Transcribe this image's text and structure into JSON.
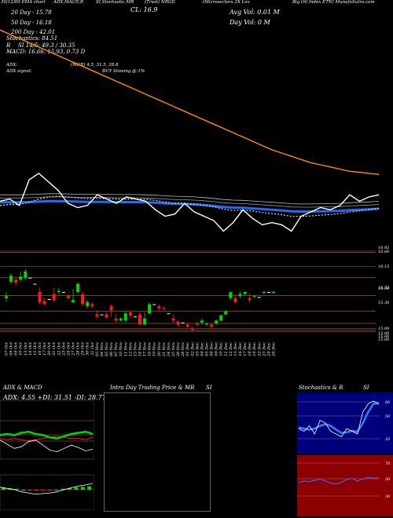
{
  "header": {
    "line1": [
      "30/12/09  EMA chart",
      "ADX,MACD,R",
      "SI,Stochastic,MR",
      "(Trust) NRGD",
      "(Microsectors  3X Lev",
      "Big Oil Index ETN) MunafaSutra.com"
    ],
    "cl_label": "CL: 16.9",
    "avg_vol": "Avg Vol: 0.01 M",
    "day_vol": "Day Vol: 0   M",
    "ema20": "20 Day - 15.78",
    "ema50": "50 Day - 16.18",
    "ema200": "200 Day - 42.01",
    "stoch": "Stochastics: 84.51",
    "rsi": "SI 14/5: 49.3 / 30.35",
    "rsi_prefix": "R",
    "macd": "MACD: 16.66, 15.93, 0.73 D",
    "adx": "ADX:",
    "adx_vals": "(MGR) 4.5, 31.5, 28.8",
    "adx_signal": "ADX  signal:",
    "signal_text": "BUY Slowing @ 1%"
  },
  "colors": {
    "bull": "#00d800",
    "bear": "#ff1a1a",
    "ema_long": "#ff8c00",
    "ema_blue": "#1e6bff",
    "price_line": "#ffffff",
    "grid": "#c06a3a",
    "rsi_panel": "#8b0000",
    "stoch_bg": "#00007a"
  },
  "chart_data": [
    {
      "type": "line",
      "title": "EMA chart",
      "series": [
        {
          "name": "Price",
          "values": [
            16.6,
            16.7,
            16.4,
            17.6,
            17.9,
            17.5,
            17.1,
            16.5,
            16.3,
            16.4,
            16.9,
            16.7,
            16.5,
            16.8,
            16.7,
            16.6,
            16.2,
            15.9,
            16.0,
            16.5,
            16.1,
            15.9,
            15.7,
            15.2,
            15.6,
            16.2,
            15.8,
            15.5,
            15.6,
            15.5,
            15.2,
            15.9,
            16.1,
            16.3,
            16.2,
            16.4,
            16.9,
            16.6,
            16.8,
            16.9
          ]
        },
        {
          "name": "20 Day",
          "values": [
            16.4,
            16.45,
            16.45,
            16.55,
            16.7,
            16.8,
            16.83,
            16.8,
            16.75,
            16.72,
            16.73,
            16.72,
            16.7,
            16.7,
            16.7,
            16.69,
            16.64,
            16.56,
            16.5,
            16.5,
            16.46,
            16.41,
            16.34,
            16.23,
            16.17,
            16.18,
            16.14,
            16.07,
            16.02,
            15.97,
            15.89,
            15.89,
            15.91,
            15.95,
            15.98,
            16.02,
            16.1,
            16.15,
            16.21,
            16.27
          ]
        },
        {
          "name": "50 Day",
          "values": [
            16.55,
            16.55,
            16.55,
            16.56,
            16.58,
            16.6,
            16.6,
            16.59,
            16.58,
            16.57,
            16.57,
            16.57,
            16.56,
            16.56,
            16.56,
            16.55,
            16.53,
            16.5,
            16.48,
            16.47,
            16.45,
            16.42,
            16.38,
            16.33,
            16.3,
            16.29,
            16.26,
            16.23,
            16.2,
            16.17,
            16.13,
            16.12,
            16.12,
            16.13,
            16.14,
            16.15,
            16.18,
            16.2,
            16.22,
            16.25
          ]
        },
        {
          "name": "200 Day",
          "values": [
            24.6,
            24.4,
            24.2,
            24.0,
            23.8,
            23.6,
            23.4,
            23.2,
            23.0,
            22.8,
            22.6,
            22.4,
            22.2,
            22.0,
            21.8,
            21.6,
            21.4,
            21.2,
            21.0,
            20.8,
            20.6,
            20.4,
            20.2,
            20.0,
            19.8,
            19.6,
            19.4,
            19.2,
            19.0,
            18.85,
            18.7,
            18.55,
            18.4,
            18.3,
            18.2,
            18.1,
            18.0,
            17.95,
            17.9,
            17.85
          ]
        }
      ],
      "ylim": [
        15.0,
        26.0
      ]
    },
    {
      "type": "bar",
      "title": "Candlesticks",
      "categories": [
        "07 Oct",
        "08 Oct",
        "09 Oct",
        "10 Oct",
        "13 Oct",
        "14 Oct",
        "15 Oct",
        "16 Oct",
        "17 Oct",
        "20 Oct",
        "21 Oct",
        "22 Oct",
        "23 Oct",
        "24 Oct",
        "27 Oct",
        "28 Oct",
        "29 Oct",
        "30 Oct",
        "31 Oct",
        "03 Nov",
        "04 Nov",
        "05 Nov",
        "06 Nov",
        "07 Nov",
        "10 Nov",
        "11 Nov",
        "12 Nov",
        "13 Nov",
        "14 Nov",
        "17 Nov",
        "18 Nov",
        "19 Nov",
        "20 Nov",
        "21 Nov",
        "24 Nov",
        "25 Nov",
        "26 Nov",
        "28 Nov",
        "01 Dec",
        "02 Dec",
        "03 Dec",
        "04 Dec",
        "05 Dec",
        "08 Dec",
        "09 Dec",
        "10 Dec",
        "11 Dec",
        "12 Dec",
        "15 Dec",
        "16 Dec",
        "17 Dec",
        "18 Dec",
        "19 Dec",
        "22 Dec",
        "23 Dec",
        "24 Dec",
        "26 Dec"
      ],
      "candles": [
        {
          "o": 16.6,
          "c": 16.7,
          "h": 16.9,
          "l": 16.4
        },
        {
          "o": 17.4,
          "c": 17.7,
          "h": 17.8,
          "l": 17.3
        },
        {
          "o": 17.5,
          "c": 17.35,
          "h": 17.6,
          "l": 17.2
        },
        {
          "o": 17.5,
          "c": 17.65,
          "h": 17.9,
          "l": 17.4
        },
        {
          "o": 17.6,
          "c": 17.9,
          "h": 18.0,
          "l": 17.5
        },
        {
          "o": 17.6,
          "c": 17.6,
          "h": 17.6,
          "l": 17.6
        },
        {
          "o": 17.3,
          "c": 17.3,
          "h": 17.3,
          "l": 17.3
        },
        {
          "o": 16.9,
          "c": 16.4,
          "h": 17.1,
          "l": 16.3
        },
        {
          "o": 16.45,
          "c": 16.3,
          "h": 16.6,
          "l": 16.25
        },
        {
          "o": 16.55,
          "c": 16.55,
          "h": 16.55,
          "l": 16.55
        },
        {
          "o": 16.8,
          "c": 16.5,
          "h": 17.1,
          "l": 16.4
        },
        {
          "o": 16.9,
          "c": 16.95,
          "h": 17.1,
          "l": 16.8
        },
        {
          "o": 16.9,
          "c": 16.9,
          "h": 16.9,
          "l": 16.9
        },
        {
          "o": 16.7,
          "c": 16.6,
          "h": 16.8,
          "l": 16.55
        },
        {
          "o": 16.4,
          "c": 16.5,
          "h": 17.05,
          "l": 16.35
        },
        {
          "o": 16.9,
          "c": 17.3,
          "h": 17.35,
          "l": 16.8
        },
        {
          "o": 16.8,
          "c": 16.3,
          "h": 16.9,
          "l": 16.2
        },
        {
          "o": 16.2,
          "c": 16.4,
          "h": 16.5,
          "l": 16.1
        },
        {
          "o": 16.3,
          "c": 16.2,
          "h": 16.4,
          "l": 16.1
        },
        {
          "o": 15.8,
          "c": 15.7,
          "h": 16.0,
          "l": 15.6
        },
        {
          "o": 15.8,
          "c": 15.8,
          "h": 15.8,
          "l": 15.8
        },
        {
          "o": 15.8,
          "c": 15.65,
          "h": 15.9,
          "l": 15.6
        },
        {
          "o": 16.2,
          "c": 16.0,
          "h": 16.3,
          "l": 15.7
        },
        {
          "o": 15.6,
          "c": 15.5,
          "h": 15.8,
          "l": 15.4
        },
        {
          "o": 15.5,
          "c": 15.6,
          "h": 15.65,
          "l": 15.45
        },
        {
          "o": 15.5,
          "c": 15.85,
          "h": 15.95,
          "l": 15.4
        },
        {
          "o": 15.9,
          "c": 15.75,
          "h": 16.0,
          "l": 15.6
        },
        {
          "o": 15.7,
          "c": 15.7,
          "h": 15.7,
          "l": 15.7
        },
        {
          "o": 15.8,
          "c": 15.3,
          "h": 15.9,
          "l": 15.3
        },
        {
          "o": 15.3,
          "c": 15.6,
          "h": 15.9,
          "l": 15.3
        },
        {
          "o": 15.85,
          "c": 16.3,
          "h": 16.35,
          "l": 15.8
        },
        {
          "o": 16.3,
          "c": 16.3,
          "h": 16.3,
          "l": 16.3
        },
        {
          "o": 16.2,
          "c": 16.1,
          "h": 16.3,
          "l": 16.0
        },
        {
          "o": 16.1,
          "c": 16.05,
          "h": 16.2,
          "l": 16.0
        },
        {
          "o": 15.85,
          "c": 15.85,
          "h": 15.85,
          "l": 15.85
        },
        {
          "o": 15.6,
          "c": 15.5,
          "h": 15.8,
          "l": 15.4
        },
        {
          "o": 15.45,
          "c": 15.3,
          "h": 15.5,
          "l": 15.2
        },
        {
          "o": 15.4,
          "c": 15.4,
          "h": 15.4,
          "l": 15.4
        },
        {
          "o": 15.3,
          "c": 15.2,
          "h": 15.4,
          "l": 15.1
        },
        {
          "o": 15.1,
          "c": 15.05,
          "h": 15.2,
          "l": 14.95
        },
        {
          "o": 15.35,
          "c": 15.3,
          "h": 15.45,
          "l": 15.2
        },
        {
          "o": 15.4,
          "c": 15.5,
          "h": 15.6,
          "l": 15.3
        },
        {
          "o": 15.3,
          "c": 15.35,
          "h": 15.4,
          "l": 15.25
        },
        {
          "o": 15.3,
          "c": 15.2,
          "h": 15.4,
          "l": 15.1
        },
        {
          "o": 15.35,
          "c": 15.5,
          "h": 15.55,
          "l": 15.3
        },
        {
          "o": 15.5,
          "c": 15.75,
          "h": 15.8,
          "l": 15.45
        },
        {
          "o": 15.8,
          "c": 15.95,
          "h": 16.0,
          "l": 15.75
        },
        {
          "o": 16.6,
          "c": 16.9,
          "h": 16.9,
          "l": 16.5
        },
        {
          "o": 16.6,
          "c": 16.4,
          "h": 16.7,
          "l": 16.35
        },
        {
          "o": 16.7,
          "c": 16.8,
          "h": 16.9,
          "l": 16.6
        },
        {
          "o": 16.8,
          "c": 16.9,
          "h": 16.9,
          "l": 16.75
        },
        {
          "o": 16.6,
          "c": 16.5,
          "h": 16.8,
          "l": 16.4
        },
        {
          "o": 16.65,
          "c": 16.7,
          "h": 16.75,
          "l": 16.6
        },
        {
          "o": 16.65,
          "c": 16.65,
          "h": 16.65,
          "l": 16.65
        },
        {
          "o": 16.85,
          "c": 16.9,
          "h": 16.95,
          "l": 16.8
        },
        {
          "o": 16.9,
          "c": 16.9,
          "h": 16.9,
          "l": 16.9
        },
        {
          "o": 16.85,
          "c": 16.9,
          "h": 16.95,
          "l": 16.8
        }
      ],
      "price_ticks": [
        "18.92",
        "18.86",
        "18.15",
        "16.73",
        "15.96",
        "15.36",
        "15.06",
        "15.06",
        "15.06",
        "15.06"
      ],
      "ylim": [
        14.9,
        18.9
      ]
    },
    {
      "type": "line",
      "title": "ADX  & MACD",
      "subtitle": "ADX: 4.55  +DI: 31.51  -DI: 28.77",
      "series": [
        {
          "name": "+DI",
          "values": [
            30,
            31,
            30,
            32,
            33,
            31,
            30,
            28,
            27,
            29,
            31,
            32,
            33,
            31
          ]
        },
        {
          "name": "-DI",
          "values": [
            27,
            26,
            27,
            26,
            25,
            26,
            27,
            28,
            29,
            28,
            27,
            27,
            26,
            28
          ]
        },
        {
          "name": "ADX",
          "values": [
            20,
            15,
            10,
            12,
            18,
            20,
            14,
            8,
            6,
            10,
            14,
            11,
            7,
            9
          ]
        },
        {
          "name": "MACD",
          "values": [
            0.4,
            0.3,
            0.2,
            0.0,
            -0.1,
            -0.2,
            -0.15,
            -0.1,
            0.0,
            0.2,
            0.35,
            0.5,
            0.6,
            0.73
          ]
        }
      ]
    },
    {
      "type": "line",
      "title": "Intra  Day Trading Price  & MR",
      "title_suffix": "SI",
      "series": []
    },
    {
      "type": "line",
      "title": "Stochastics & R",
      "title_suffix": "SI",
      "stoch_levels": [
        "80",
        "50",
        "20"
      ],
      "rsi_levels": [
        "70",
        "50",
        "30"
      ],
      "series": [
        {
          "name": "Stochastic %K",
          "values": [
            40,
            35,
            45,
            30,
            55,
            50,
            35,
            30,
            25,
            40,
            35,
            30,
            70,
            85,
            90,
            84
          ]
        },
        {
          "name": "Stochastic %D",
          "values": [
            42,
            40,
            38,
            40,
            45,
            48,
            45,
            38,
            32,
            33,
            36,
            34,
            50,
            70,
            85,
            86
          ]
        },
        {
          "name": "RSI",
          "values": [
            42,
            44,
            43,
            45,
            47,
            44,
            41,
            40,
            42,
            46,
            48,
            44,
            47,
            49,
            48,
            49
          ]
        }
      ],
      "ylim": [
        0,
        100
      ]
    }
  ]
}
